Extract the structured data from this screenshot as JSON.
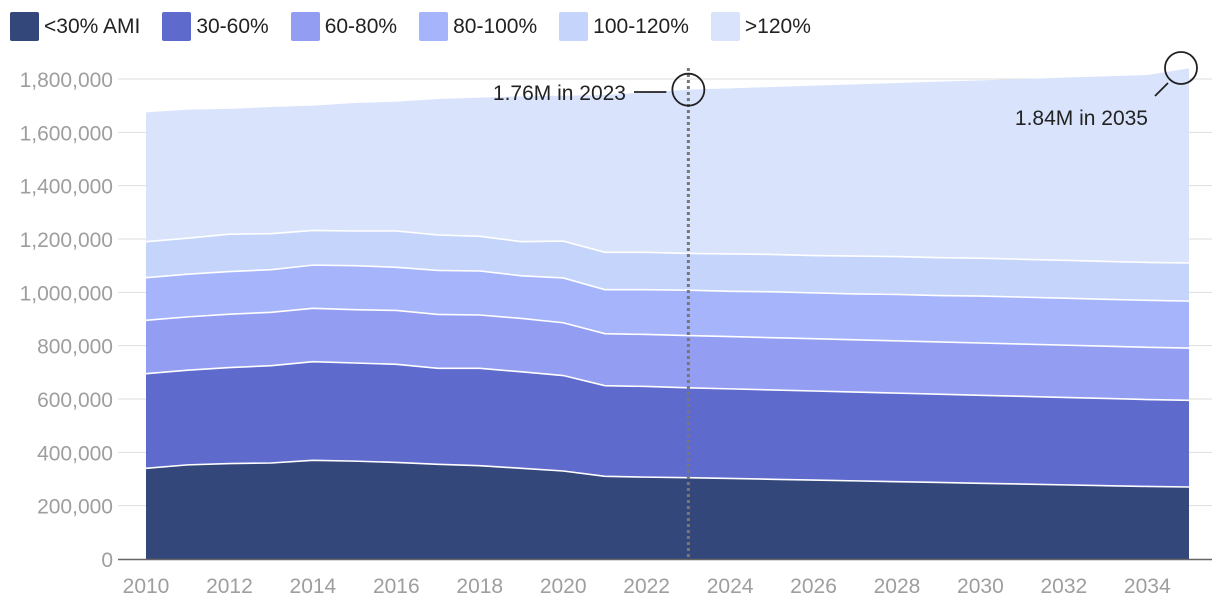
{
  "chart_data": {
    "type": "area",
    "stacked": true,
    "x": [
      2010,
      2011,
      2012,
      2013,
      2014,
      2015,
      2016,
      2017,
      2018,
      2019,
      2020,
      2021,
      2022,
      2023,
      2024,
      2025,
      2026,
      2027,
      2028,
      2029,
      2030,
      2031,
      2032,
      2033,
      2034,
      2035
    ],
    "x_ticks": [
      "2010",
      "2012",
      "2014",
      "2016",
      "2018",
      "2020",
      "2022",
      "2024",
      "2026",
      "2028",
      "2030",
      "2032",
      "2034"
    ],
    "y_ticks": [
      "0",
      "200,000",
      "400,000",
      "600,000",
      "800,000",
      "1,000,000",
      "1,200,000",
      "1,400,000",
      "1,600,000",
      "1,800,000"
    ],
    "ylim": [
      0,
      1850000
    ],
    "grid": true,
    "legend_position": "top-left",
    "series": [
      {
        "name": "<30% AMI",
        "color": "#34477a",
        "values": [
          340000,
          353000,
          358000,
          360000,
          370000,
          367000,
          362000,
          355000,
          350000,
          340000,
          330000,
          310000,
          307000,
          305000,
          302000,
          299000,
          296000,
          293000,
          290000,
          287000,
          284000,
          281000,
          278000,
          275000,
          272000,
          270000
        ]
      },
      {
        "name": "30-60%",
        "color": "#5f6acd",
        "values": [
          355000,
          355000,
          360000,
          365000,
          370000,
          368000,
          368000,
          360000,
          365000,
          362000,
          358000,
          340000,
          340000,
          337000,
          336000,
          335000,
          334000,
          333000,
          332000,
          331000,
          330000,
          329000,
          328000,
          327000,
          326000,
          325000
        ]
      },
      {
        "name": "60-80%",
        "color": "#939ef2",
        "values": [
          200000,
          200000,
          200000,
          200000,
          200000,
          200000,
          202000,
          202000,
          200000,
          200000,
          198000,
          195000,
          195000,
          196000,
          196000,
          196000,
          196000,
          196000,
          196000,
          196000,
          196000,
          196000,
          196000,
          196000,
          196000,
          196000
        ]
      },
      {
        "name": "80-100%",
        "color": "#a5b4fb",
        "values": [
          160000,
          160000,
          160000,
          160000,
          162000,
          165000,
          162000,
          165000,
          165000,
          160000,
          168000,
          165000,
          168000,
          170000,
          170000,
          172000,
          172000,
          172000,
          174000,
          174000,
          176000,
          176000,
          176000,
          176000,
          176000,
          176000
        ]
      },
      {
        "name": "100-120%",
        "color": "#c5d4fb",
        "values": [
          135000,
          135000,
          140000,
          135000,
          130000,
          130000,
          136000,
          133000,
          130000,
          128000,
          138000,
          140000,
          140000,
          138000,
          140000,
          140000,
          140000,
          142000,
          142000,
          142000,
          142000,
          142000,
          142000,
          142000,
          142000,
          143000
        ]
      },
      {
        "name": ">120%",
        "color": "#d9e4fc",
        "values": [
          485000,
          482000,
          470000,
          475000,
          468000,
          480000,
          485000,
          510000,
          520000,
          545000,
          545000,
          590000,
          600000,
          614000,
          621000,
          628000,
          637000,
          644000,
          651000,
          660000,
          667000,
          676000,
          685000,
          694000,
          703000,
          730000
        ]
      }
    ],
    "annotations": [
      {
        "text": "1.76M in 2023",
        "x": 2023,
        "y": 1760000
      },
      {
        "text": "1.84M in 2035",
        "x": 2035,
        "y": 1840000
      }
    ],
    "reference_line": {
      "x": 2023
    }
  }
}
